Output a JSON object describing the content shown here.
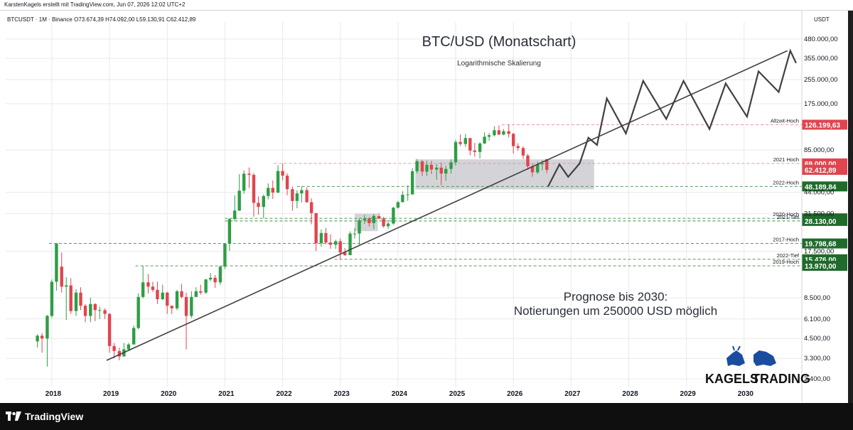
{
  "header": {
    "attribution": "KarstenKagels erstellt mit TradingView.com, Jun 07, 2026 12:02 UTC+2",
    "legend": "BTCUSDT · 1M · Binance  O73.674,39  H74.092,00  L59.130,91  C62.412,89"
  },
  "footer": {
    "brand": "TradingView"
  },
  "colors": {
    "bull": "#2e9e45",
    "bear": "#e0454f",
    "resistance_red": "#e0454f",
    "support_green": "#1f6b2c",
    "grid": "#e9e9ec",
    "line": "#404040"
  },
  "chart_data": {
    "type": "candlestick",
    "title": "BTC/USD (Monatschart)",
    "subtitle": "Logarithmische Skalierung",
    "annotation": [
      "Prognose bis 2030:",
      "Notierungen um 250000 USD möglich"
    ],
    "currency": "USDT",
    "log_scale": true,
    "ylim": [
      2100,
      560000
    ],
    "xlim": [
      2017.2,
      2031.0
    ],
    "x_ticks": [
      "2018",
      "2019",
      "2020",
      "2021",
      "2022",
      "2023",
      "2024",
      "2025",
      "2026",
      "2027",
      "2028",
      "2029",
      "2030"
    ],
    "y_ticks": [
      {
        "value": 480000,
        "label": "480.000,00"
      },
      {
        "value": 355000,
        "label": "355.000,00"
      },
      {
        "value": 255000,
        "label": "255.000,00"
      },
      {
        "value": 175000,
        "label": "175.000,00"
      },
      {
        "value": 85000,
        "label": "85.000,00"
      },
      {
        "value": 44000,
        "label": "44.000,00"
      },
      {
        "value": 31500,
        "label": "31.500,00"
      },
      {
        "value": 17500,
        "label": "17.500,00"
      },
      {
        "value": 8500,
        "label": "8.500,00"
      },
      {
        "value": 6100,
        "label": "6.100,00"
      },
      {
        "value": 4500,
        "label": "4.500,00"
      },
      {
        "value": 3300,
        "label": "3.300,00"
      },
      {
        "value": 2400,
        "label": "2.400,00"
      }
    ],
    "levels": [
      {
        "name": "Allzeit-Hoch",
        "value": 126199.63,
        "label": "126.199,63",
        "kind": "resistance",
        "start": 2025.8
      },
      {
        "name": "2021 Hoch",
        "value": 69000.0,
        "label": "69.000,00",
        "kind": "resistance",
        "start": 2021.85
      },
      {
        "name": "",
        "value": 62412.89,
        "label": "62.412,89",
        "kind": "current",
        "start": null
      },
      {
        "name": "2022-Hoch",
        "value": 48189.84,
        "label": "48.189,84",
        "kind": "support",
        "start": 2022.25
      },
      {
        "name": "2020-Hoch",
        "value": 29300.0,
        "label": "29.300,00",
        "kind": "support",
        "start": 2021.0
      },
      {
        "name": "2021-Tief",
        "value": 28130.0,
        "label": "28.130,00",
        "kind": "support",
        "start": 2021.0
      },
      {
        "name": "2017-Hoch",
        "value": 19798.68,
        "label": "19.798,68",
        "kind": "support",
        "start": 2017.95
      },
      {
        "name": "2022-Tief",
        "value": 15476.0,
        "label": "15.476,00",
        "kind": "support",
        "start": 2022.9
      },
      {
        "name": "2019-Hoch",
        "value": 13970.0,
        "label": "13.970,00",
        "kind": "support",
        "start": 2019.45
      }
    ],
    "trendline": [
      [
        2018.95,
        3200
      ],
      [
        2030.75,
        400000
      ]
    ],
    "forecast": [
      [
        2026.6,
        48000
      ],
      [
        2026.8,
        68000
      ],
      [
        2026.95,
        56000
      ],
      [
        2027.15,
        69000
      ],
      [
        2027.3,
        103000
      ],
      [
        2027.45,
        92000
      ],
      [
        2027.62,
        190000
      ],
      [
        2027.95,
        110000
      ],
      [
        2028.25,
        250000
      ],
      [
        2028.65,
        138000
      ],
      [
        2028.95,
        250000
      ],
      [
        2029.4,
        118000
      ],
      [
        2029.68,
        240000
      ],
      [
        2030.05,
        143000
      ],
      [
        2030.25,
        290000
      ],
      [
        2030.6,
        210000
      ],
      [
        2030.8,
        400000
      ],
      [
        2030.9,
        330000
      ]
    ],
    "boxes": [
      {
        "x0": 2024.3,
        "x1": 2027.4,
        "y0": 46000,
        "y1": 73500
      },
      {
        "x0": 2023.25,
        "x1": 2023.65,
        "y0": 24000,
        "y1": 31500
      }
    ],
    "candles": [
      [
        2017.75,
        4300,
        4700,
        3900,
        4800
      ],
      [
        2017.83,
        4700,
        4500,
        3600,
        4900
      ],
      [
        2017.92,
        4500,
        6400,
        2900,
        6500
      ],
      [
        2018.0,
        6400,
        10900,
        6200,
        11300
      ],
      [
        2018.08,
        10900,
        19800,
        9500,
        19800
      ],
      [
        2018.17,
        13800,
        10100,
        9200,
        17200
      ],
      [
        2018.25,
        10100,
        10300,
        6000,
        11700
      ],
      [
        2018.33,
        10300,
        6900,
        6600,
        11500
      ],
      [
        2018.42,
        6900,
        9200,
        6400,
        9700
      ],
      [
        2018.5,
        9200,
        7500,
        7000,
        10000
      ],
      [
        2018.58,
        7500,
        6400,
        5800,
        7700
      ],
      [
        2018.67,
        6400,
        7700,
        5800,
        8500
      ],
      [
        2018.75,
        7700,
        7000,
        5900,
        7800
      ],
      [
        2018.83,
        7000,
        7000,
        6100,
        7400
      ],
      [
        2018.92,
        7000,
        6600,
        6100,
        7200
      ],
      [
        2019.0,
        6600,
        4000,
        3600,
        6700
      ],
      [
        2019.08,
        4000,
        3700,
        3300,
        4200
      ],
      [
        2019.17,
        3700,
        3400,
        3200,
        3900
      ],
      [
        2019.25,
        3400,
        3800,
        3400,
        4200
      ],
      [
        2019.33,
        3800,
        4100,
        3700,
        4200
      ],
      [
        2019.42,
        4100,
        5300,
        4100,
        5500
      ],
      [
        2019.5,
        5300,
        8600,
        5200,
        9100
      ],
      [
        2019.58,
        8600,
        10800,
        8400,
        13900
      ],
      [
        2019.67,
        10800,
        10100,
        9100,
        12300
      ],
      [
        2019.75,
        10100,
        9600,
        9300,
        10900
      ],
      [
        2019.83,
        9600,
        8300,
        7700,
        10900
      ],
      [
        2019.92,
        8300,
        9200,
        8200,
        10400
      ],
      [
        2020.0,
        9200,
        7500,
        6600,
        9300
      ],
      [
        2020.08,
        7500,
        7200,
        6600,
        7500
      ],
      [
        2020.17,
        7200,
        9400,
        7000,
        9600
      ],
      [
        2020.25,
        9400,
        8600,
        8400,
        10500
      ],
      [
        2020.33,
        8600,
        6400,
        3800,
        9200
      ],
      [
        2020.42,
        6400,
        8600,
        6200,
        9400
      ],
      [
        2020.5,
        8600,
        9400,
        8600,
        10000
      ],
      [
        2020.58,
        9400,
        9200,
        8900,
        10400
      ],
      [
        2020.67,
        9200,
        11300,
        9000,
        11400
      ],
      [
        2020.75,
        11300,
        11600,
        11000,
        12500
      ],
      [
        2020.83,
        11600,
        10800,
        9900,
        12100
      ],
      [
        2020.92,
        10800,
        13800,
        10400,
        14000
      ],
      [
        2021.0,
        13800,
        19700,
        13300,
        19900
      ],
      [
        2021.08,
        19700,
        29000,
        17600,
        29300
      ],
      [
        2021.17,
        29000,
        33100,
        28100,
        42000
      ],
      [
        2021.25,
        33100,
        45100,
        32800,
        58300
      ],
      [
        2021.33,
        45100,
        58800,
        43000,
        61800
      ],
      [
        2021.42,
        58800,
        57700,
        47000,
        64800
      ],
      [
        2021.5,
        57700,
        37300,
        30000,
        59500
      ],
      [
        2021.58,
        37300,
        35000,
        31000,
        41300
      ],
      [
        2021.67,
        35000,
        41500,
        29300,
        42400
      ],
      [
        2021.75,
        41500,
        47100,
        39400,
        50500
      ],
      [
        2021.83,
        47100,
        43800,
        39600,
        52900
      ],
      [
        2021.92,
        43800,
        61300,
        43300,
        67000
      ],
      [
        2022.0,
        61300,
        57000,
        53000,
        69000
      ],
      [
        2022.08,
        57000,
        46200,
        42000,
        59200
      ],
      [
        2022.17,
        46200,
        38400,
        33000,
        48200
      ],
      [
        2022.25,
        38400,
        43200,
        34300,
        45400
      ],
      [
        2022.33,
        43200,
        45500,
        37500,
        48200
      ],
      [
        2022.42,
        45500,
        37700,
        37300,
        47500
      ],
      [
        2022.5,
        37700,
        31800,
        26700,
        40000
      ],
      [
        2022.58,
        31800,
        19900,
        17600,
        31900
      ],
      [
        2022.67,
        19900,
        23300,
        18800,
        24700
      ],
      [
        2022.75,
        23300,
        20100,
        19600,
        25200
      ],
      [
        2022.83,
        20100,
        19400,
        18200,
        22800
      ],
      [
        2022.92,
        19400,
        20500,
        18200,
        21000
      ],
      [
        2023.0,
        20500,
        17200,
        15500,
        21400
      ],
      [
        2023.08,
        17200,
        16500,
        16300,
        18400
      ],
      [
        2023.17,
        16500,
        23100,
        16500,
        23900
      ],
      [
        2023.25,
        23100,
        23100,
        21400,
        25200
      ],
      [
        2023.33,
        23100,
        28400,
        19500,
        29200
      ],
      [
        2023.42,
        28400,
        29200,
        26900,
        30900
      ],
      [
        2023.5,
        29200,
        27200,
        25800,
        29800
      ],
      [
        2023.58,
        27200,
        30400,
        24800,
        31400
      ],
      [
        2023.67,
        30400,
        29200,
        28900,
        31800
      ],
      [
        2023.75,
        29200,
        25900,
        25300,
        30000
      ],
      [
        2023.83,
        25900,
        27000,
        24900,
        28600
      ],
      [
        2023.92,
        27000,
        34600,
        26500,
        35000
      ],
      [
        2024.0,
        34600,
        37700,
        34100,
        38400
      ],
      [
        2024.08,
        37700,
        42300,
        37600,
        44700
      ],
      [
        2024.17,
        42300,
        42600,
        38500,
        48900
      ],
      [
        2024.25,
        42600,
        61100,
        42200,
        64000
      ],
      [
        2024.33,
        61100,
        71300,
        59000,
        73800
      ],
      [
        2024.42,
        71300,
        60700,
        56600,
        72800
      ],
      [
        2024.5,
        60700,
        67500,
        56600,
        71900
      ],
      [
        2024.58,
        67500,
        62700,
        58400,
        71900
      ],
      [
        2024.67,
        62700,
        64600,
        53500,
        68500
      ],
      [
        2024.75,
        64600,
        58900,
        49100,
        70000
      ],
      [
        2024.83,
        58900,
        63300,
        52600,
        66500
      ],
      [
        2024.92,
        63300,
        70200,
        58900,
        73600
      ],
      [
        2025.0,
        70200,
        96400,
        66800,
        99800
      ],
      [
        2025.08,
        96400,
        93400,
        90500,
        108300
      ],
      [
        2025.17,
        93400,
        102400,
        89200,
        109400
      ],
      [
        2025.25,
        102400,
        84300,
        78200,
        102800
      ],
      [
        2025.33,
        84300,
        82500,
        76600,
        95000
      ],
      [
        2025.42,
        82500,
        94200,
        74500,
        95800
      ],
      [
        2025.5,
        94200,
        104600,
        93400,
        111900
      ],
      [
        2025.58,
        104600,
        107100,
        98200,
        110500
      ],
      [
        2025.67,
        107100,
        115700,
        105100,
        123200
      ],
      [
        2025.75,
        115700,
        108200,
        107300,
        124500
      ],
      [
        2025.83,
        108200,
        114000,
        107300,
        117900
      ],
      [
        2025.92,
        114000,
        109500,
        103500,
        126200
      ],
      [
        2026.0,
        109500,
        90400,
        80500,
        111000
      ],
      [
        2026.08,
        90400,
        87700,
        84000,
        94500
      ],
      [
        2026.17,
        87700,
        78000,
        74000,
        90000
      ],
      [
        2026.25,
        78000,
        66000,
        62500,
        80000
      ],
      [
        2026.33,
        66000,
        60000,
        56000,
        69000
      ],
      [
        2026.42,
        60000,
        68000,
        58500,
        71000
      ],
      [
        2026.5,
        68000,
        69000,
        62000,
        72500
      ],
      [
        2026.58,
        73674.39,
        62412.89,
        59130.91,
        74092.0
      ]
    ]
  },
  "brand": {
    "line1": "KAGELS",
    "line2": "TRADING"
  }
}
